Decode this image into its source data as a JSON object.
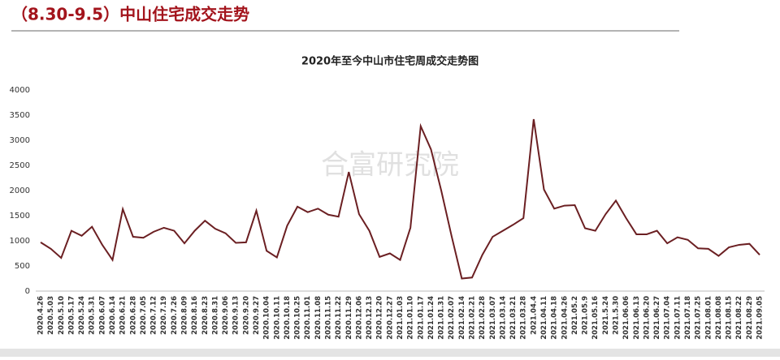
{
  "header": {
    "title": "（8.30-9.5）中山住宅成交走势"
  },
  "watermark": "合富研究院",
  "chart_data": {
    "type": "line",
    "title": "2020年至今中山市住宅周成交走势图",
    "categories": [
      "2020.4.26",
      "2020.5.03",
      "2020.5.10",
      "2020.5.17",
      "2020.5.24",
      "2020.5.31",
      "2020.6.07",
      "2020.6.14",
      "2020.6.21",
      "2020.6.28",
      "2020.7.05",
      "2020.7.12",
      "2020.7.19",
      "2020.7.26",
      "2020.8.09",
      "2020.8.16",
      "2020.8.23",
      "2020.8.31",
      "2020.9.06",
      "2020.9.13",
      "2020.9.20",
      "2020.9.27",
      "2020.10.04",
      "2020.10.11",
      "2020.10.18",
      "2020.10.25",
      "2020.11.01",
      "2020.11.08",
      "2020.11.15",
      "2020.11.22",
      "2020.11.29",
      "2020.12.06",
      "2020.12.13",
      "2020.12.20",
      "2020.12.27",
      "2021.01.03",
      "2021.01.10",
      "2021.01.17",
      "2021.01.24",
      "2021.01.31",
      "2021.02.07",
      "2021.02.14",
      "2021.02.21",
      "2021.02.28",
      "2021.03.07",
      "2021.03.14",
      "2021.03.21",
      "2021.03.28",
      "2021.04.4",
      "2021.04.11",
      "2021.04.18",
      "2021.04.26",
      "2021.05.2",
      "2021.05.9",
      "2021.05.16",
      "2021.5.24",
      "2021.5.30",
      "2021.06.06",
      "2021.06.13",
      "2021.06.20",
      "2021.06.27",
      "2021.07.04",
      "2021.07.11",
      "2021.07.18",
      "2021.07.25",
      "2021.08.01",
      "2021.08.08",
      "2021.08.15",
      "2021.08.22",
      "2021.08.29",
      "2021.09.05"
    ],
    "series": [
      {
        "color": "#6b1f22",
        "values": [
          970,
          840,
          660,
          1200,
          1100,
          1280,
          920,
          620,
          1630,
          1080,
          1060,
          1180,
          1260,
          1200,
          950,
          1200,
          1400,
          1240,
          1150,
          960,
          970,
          1600,
          800,
          670,
          1300,
          1680,
          1570,
          1640,
          1520,
          1480,
          2370,
          1530,
          1200,
          680,
          750,
          620,
          1260,
          3280,
          2820,
          2000,
          1100,
          250,
          270,
          720,
          1080,
          1200,
          1320,
          1450,
          3420,
          2020,
          1640,
          1700,
          1710,
          1250,
          1200,
          1530,
          1800,
          1450,
          1130,
          1130,
          1200,
          950,
          1070,
          1020,
          850,
          840,
          700,
          870,
          920,
          940,
          720
        ]
      }
    ],
    "ylim": [
      0,
      4000
    ],
    "yticks": [
      0,
      500,
      1000,
      1500,
      2000,
      2500,
      3000,
      3500,
      4000
    ]
  }
}
